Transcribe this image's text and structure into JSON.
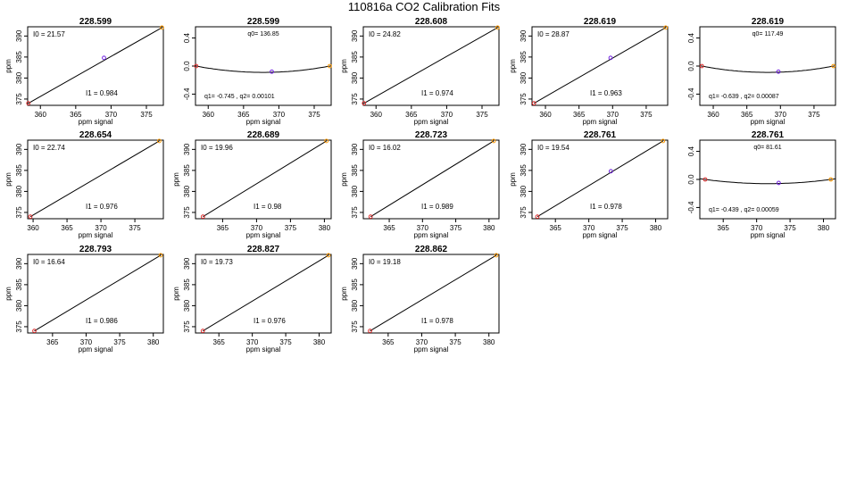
{
  "title": "110816a   CO2 Calibration Fits",
  "chart_data": [
    {
      "type": "scatter",
      "fit": "linear",
      "title": "228.599",
      "xlabel": "ppm signal",
      "ylabel": "ppm",
      "xlim": [
        358.2,
        377.4
      ],
      "ylim": [
        373.5,
        392.2
      ],
      "xticks": [
        360,
        365,
        370,
        375
      ],
      "yticks": [
        375,
        380,
        385,
        390
      ],
      "x": [
        358.3,
        369.0,
        377.2
      ],
      "y": [
        374.0,
        384.8,
        392.0
      ],
      "point_colors": [
        "#e03030",
        "#7020e0",
        "#ff9900"
      ],
      "line": [
        [
          358.3,
          374.0
        ],
        [
          377.2,
          392.0
        ]
      ],
      "annotations": [
        "I0 =  21.57",
        "I1 =  0.984"
      ]
    },
    {
      "type": "scatter",
      "fit": "quadratic",
      "title": "228.599",
      "xlabel": "ppm signal",
      "ylabel": "",
      "xlim": [
        358.2,
        377.4
      ],
      "ylim": [
        -0.56,
        0.56
      ],
      "xticks": [
        360,
        365,
        370,
        375
      ],
      "yticks": [
        -0.4,
        0.0,
        0.4
      ],
      "x": [
        358.3,
        369.0,
        377.2
      ],
      "y": [
        0.0,
        -0.08,
        0.0
      ],
      "point_colors": [
        "#e03030",
        "#7020e0",
        "#ff9900"
      ],
      "curve": {
        "x0": 358.3,
        "x1": 377.2,
        "vertex_x": 367.75,
        "vertex_y": -0.09
      },
      "annotations": [
        "q0= 136.85",
        "q1= -0.745 , q2= 0.00101"
      ]
    },
    {
      "type": "scatter",
      "fit": "linear",
      "title": "228.608",
      "xlabel": "ppm signal",
      "ylabel": "ppm",
      "xlim": [
        358.2,
        377.4
      ],
      "ylim": [
        373.5,
        392.2
      ],
      "xticks": [
        360,
        365,
        370,
        375
      ],
      "yticks": [
        375,
        380,
        385,
        390
      ],
      "x": [
        358.3,
        377.2
      ],
      "y": [
        374.0,
        392.0
      ],
      "point_colors": [
        "#e03030",
        "#ff9900"
      ],
      "line": [
        [
          358.3,
          374.0
        ],
        [
          377.2,
          392.0
        ]
      ],
      "annotations": [
        "I0 =  24.82",
        "I1 =  0.974"
      ]
    },
    {
      "type": "scatter",
      "fit": "linear",
      "title": "228.619",
      "xlabel": "ppm signal",
      "ylabel": "ppm",
      "xlim": [
        358.0,
        378.2
      ],
      "ylim": [
        373.5,
        392.2
      ],
      "xticks": [
        360,
        365,
        370,
        375
      ],
      "yticks": [
        375,
        380,
        385,
        390
      ],
      "x": [
        358.3,
        369.7,
        377.9
      ],
      "y": [
        374.0,
        384.8,
        392.0
      ],
      "point_colors": [
        "#e03030",
        "#7020e0",
        "#ff9900"
      ],
      "line": [
        [
          358.3,
          374.0
        ],
        [
          377.9,
          392.0
        ]
      ],
      "annotations": [
        "I0 =  28.87",
        "I1 =  0.963"
      ]
    },
    {
      "type": "scatter",
      "fit": "quadratic",
      "title": "228.619",
      "xlabel": "ppm signal",
      "ylabel": "",
      "xlim": [
        358.0,
        378.2
      ],
      "ylim": [
        -0.56,
        0.56
      ],
      "xticks": [
        360,
        365,
        370,
        375
      ],
      "yticks": [
        -0.4,
        0.0,
        0.4
      ],
      "x": [
        358.3,
        369.7,
        377.9
      ],
      "y": [
        0.0,
        -0.08,
        0.0
      ],
      "point_colors": [
        "#e03030",
        "#7020e0",
        "#ff9900"
      ],
      "curve": {
        "x0": 358.3,
        "x1": 377.9,
        "vertex_x": 368.1,
        "vertex_y": -0.09
      },
      "annotations": [
        "q0= 117.49",
        "q1= -0.639 , q2= 0.00087"
      ]
    },
    {
      "type": "scatter",
      "fit": "linear",
      "title": "228.654",
      "xlabel": "ppm signal",
      "ylabel": "ppm",
      "xlim": [
        359.2,
        379.2
      ],
      "ylim": [
        373.5,
        392.2
      ],
      "xticks": [
        360,
        365,
        370,
        375
      ],
      "yticks": [
        375,
        380,
        385,
        390
      ],
      "x": [
        359.6,
        378.6
      ],
      "y": [
        374.0,
        392.0
      ],
      "point_colors": [
        "#e03030",
        "#ff9900"
      ],
      "line": [
        [
          359.6,
          374.0
        ],
        [
          378.6,
          392.0
        ]
      ],
      "annotations": [
        "I0 =  22.74",
        "I1 =  0.976"
      ]
    },
    {
      "type": "scatter",
      "fit": "linear",
      "title": "228.689",
      "xlabel": "ppm signal",
      "ylabel": "ppm",
      "xlim": [
        361.0,
        381.0
      ],
      "ylim": [
        373.5,
        392.2
      ],
      "xticks": [
        365,
        370,
        375,
        380
      ],
      "yticks": [
        375,
        380,
        385,
        390
      ],
      "x": [
        362.1,
        380.3
      ],
      "y": [
        374.0,
        392.0
      ],
      "point_colors": [
        "#e03030",
        "#ff9900"
      ],
      "line": [
        [
          362.1,
          374.0
        ],
        [
          380.3,
          392.0
        ]
      ],
      "annotations": [
        "I0 =  19.96",
        "I1 =  0.98"
      ]
    },
    {
      "type": "scatter",
      "fit": "linear",
      "title": "228.723",
      "xlabel": "ppm signal",
      "ylabel": "ppm",
      "xlim": [
        361.1,
        381.5
      ],
      "ylim": [
        373.5,
        392.2
      ],
      "xticks": [
        365,
        370,
        375,
        380
      ],
      "yticks": [
        375,
        380,
        385,
        390
      ],
      "x": [
        362.2,
        380.7
      ],
      "y": [
        374.0,
        392.0
      ],
      "point_colors": [
        "#e03030",
        "#ff9900"
      ],
      "line": [
        [
          362.2,
          374.0
        ],
        [
          380.7,
          392.0
        ]
      ],
      "annotations": [
        "I0 =  16.02",
        "I1 =  0.989"
      ]
    },
    {
      "type": "scatter",
      "fit": "linear",
      "title": "228.761",
      "xlabel": "ppm signal",
      "ylabel": "ppm",
      "xlim": [
        361.5,
        381.8
      ],
      "ylim": [
        373.5,
        392.2
      ],
      "xticks": [
        365,
        370,
        375,
        380
      ],
      "yticks": [
        375,
        380,
        385,
        390
      ],
      "x": [
        362.3,
        373.3,
        381.1
      ],
      "y": [
        374.0,
        384.8,
        392.0
      ],
      "point_colors": [
        "#e03030",
        "#7020e0",
        "#ff9900"
      ],
      "line": [
        [
          362.3,
          374.0
        ],
        [
          381.1,
          392.0
        ]
      ],
      "annotations": [
        "I0 =  19.54",
        "I1 =  0.978"
      ]
    },
    {
      "type": "scatter",
      "fit": "quadratic",
      "title": "228.761",
      "xlabel": "ppm signal",
      "ylabel": "",
      "xlim": [
        361.5,
        381.8
      ],
      "ylim": [
        -0.56,
        0.56
      ],
      "xticks": [
        365,
        370,
        375,
        380
      ],
      "yticks": [
        -0.4,
        0.0,
        0.4
      ],
      "x": [
        362.3,
        373.3,
        381.1
      ],
      "y": [
        0.0,
        -0.05,
        0.0
      ],
      "point_colors": [
        "#e03030",
        "#7020e0",
        "#ff9900"
      ],
      "curve": {
        "x0": 362.3,
        "x1": 381.1,
        "vertex_x": 371.7,
        "vertex_y": -0.06
      },
      "annotations": [
        "q0= 81.61",
        "q1= -0.439 , q2= 0.00059"
      ]
    },
    {
      "type": "scatter",
      "fit": "linear",
      "title": "228.793",
      "xlabel": "ppm signal",
      "ylabel": "ppm",
      "xlim": [
        361.3,
        381.5
      ],
      "ylim": [
        373.5,
        392.2
      ],
      "xticks": [
        365,
        370,
        375,
        380
      ],
      "yticks": [
        375,
        380,
        385,
        390
      ],
      "x": [
        362.3,
        381.1
      ],
      "y": [
        374.0,
        392.0
      ],
      "point_colors": [
        "#e03030",
        "#ff9900"
      ],
      "line": [
        [
          362.3,
          374.0
        ],
        [
          381.1,
          392.0
        ]
      ],
      "annotations": [
        "I0 =  16.64",
        "I1 =  0.986"
      ]
    },
    {
      "type": "scatter",
      "fit": "linear",
      "title": "228.827",
      "xlabel": "ppm signal",
      "ylabel": "ppm",
      "xlim": [
        361.5,
        381.8
      ],
      "ylim": [
        373.5,
        392.2
      ],
      "xticks": [
        365,
        370,
        375,
        380
      ],
      "yticks": [
        375,
        380,
        385,
        390
      ],
      "x": [
        362.6,
        381.4
      ],
      "y": [
        374.0,
        392.0
      ],
      "point_colors": [
        "#e03030",
        "#ff9900"
      ],
      "line": [
        [
          362.6,
          374.0
        ],
        [
          381.4,
          392.0
        ]
      ],
      "annotations": [
        "I0 =  19.73",
        "I1 =  0.976"
      ]
    },
    {
      "type": "scatter",
      "fit": "linear",
      "title": "228.862",
      "xlabel": "ppm signal",
      "ylabel": "ppm",
      "xlim": [
        361.3,
        381.5
      ],
      "ylim": [
        373.5,
        392.2
      ],
      "xticks": [
        365,
        370,
        375,
        380
      ],
      "yticks": [
        375,
        380,
        385,
        390
      ],
      "x": [
        362.3,
        381.1
      ],
      "y": [
        374.0,
        392.0
      ],
      "point_colors": [
        "#e03030",
        "#ff9900"
      ],
      "line": [
        [
          362.3,
          374.0
        ],
        [
          381.1,
          392.0
        ]
      ],
      "annotations": [
        "I0 =  19.18",
        "I1 =  0.978"
      ]
    }
  ]
}
